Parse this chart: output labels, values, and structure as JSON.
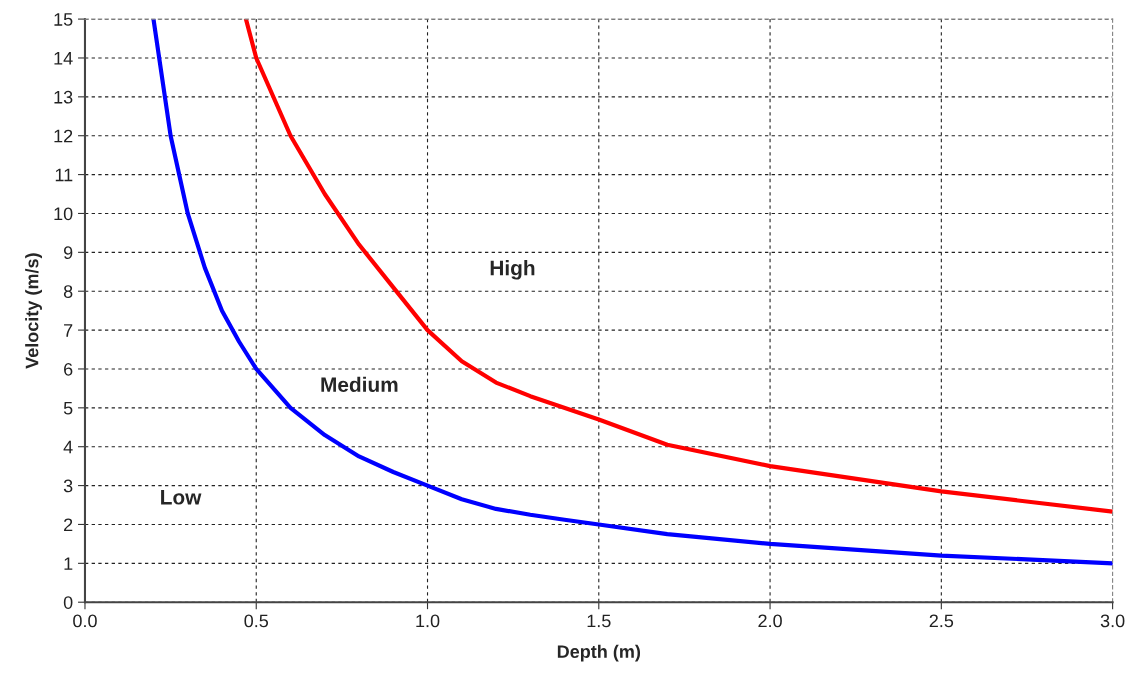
{
  "chart_data": {
    "type": "line",
    "xlabel": "Depth (m)",
    "ylabel": "Velocity (m/s)",
    "series": [
      {
        "color": "#0000ff",
        "x": [
          0.2,
          0.25,
          0.3,
          0.35,
          0.4,
          0.45,
          0.5,
          0.6,
          0.7,
          0.8,
          0.9,
          1.0,
          1.1,
          1.2,
          1.3,
          1.4,
          1.5,
          1.7,
          2.0,
          2.5,
          3.0
        ],
        "values": [
          15,
          12,
          10,
          8.6,
          7.5,
          6.7,
          6,
          5,
          4.3,
          3.75,
          3.35,
          3,
          2.65,
          2.4,
          2.25,
          2.12,
          2,
          1.75,
          1.5,
          1.2,
          1
        ]
      },
      {
        "color": "#ff0000",
        "x": [
          0.47,
          0.5,
          0.6,
          0.7,
          0.8,
          0.9,
          1.0,
          1.1,
          1.2,
          1.3,
          1.5,
          1.7,
          2.0,
          2.5,
          3.0
        ],
        "values": [
          15,
          14,
          12,
          10.5,
          9.2,
          8.1,
          7,
          6.2,
          5.65,
          5.3,
          4.7,
          4.05,
          3.5,
          2.85,
          2.33
        ]
      }
    ],
    "annotations": [
      "High",
      "Medium",
      "Low"
    ],
    "xlim": [
      0,
      3
    ],
    "xticks": [
      {
        "value": 0,
        "label": "0.0"
      },
      {
        "value": 0.5,
        "label": "0.5"
      },
      {
        "value": 1,
        "label": "1.0"
      },
      {
        "value": 1.5,
        "label": "1.5"
      },
      {
        "value": 2,
        "label": "2.0"
      },
      {
        "value": 2.5,
        "label": "2.5"
      },
      {
        "value": 3,
        "label": "3.0"
      }
    ],
    "ylim": [
      0,
      15
    ],
    "yticks": [
      0,
      1,
      2,
      3,
      4,
      5,
      6,
      7,
      8,
      9,
      10,
      11,
      12,
      13,
      14,
      15
    ],
    "grid": true,
    "line_style": "solid",
    "marker": "none"
  }
}
